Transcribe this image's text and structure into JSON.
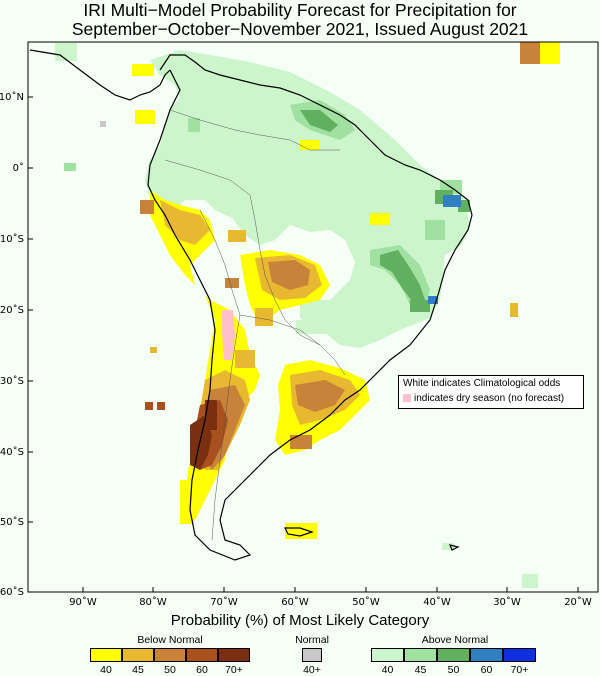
{
  "title": {
    "line1": "IRI Multi−Model Probability Forecast for Precipitation for",
    "line2": "September−October−November 2021, Issued August 2021"
  },
  "map": {
    "lat_labels": [
      "10˚N",
      "0˚",
      "10˚S",
      "20˚S",
      "30˚S",
      "40˚S",
      "50˚S",
      "60˚S"
    ],
    "lon_labels": [
      "90˚W",
      "80˚W",
      "70˚W",
      "60˚W",
      "50˚W",
      "40˚W",
      "30˚W",
      "20˚W"
    ],
    "note_line1": "White indicates Climatological odds",
    "note_line2": "indicates dry season (no forecast)"
  },
  "legend": {
    "title": "Probability (%) of Most Likely Category",
    "below_label": "Below Normal",
    "normal_label": "Normal",
    "above_label": "Above Normal",
    "below_ticks": [
      "40",
      "45",
      "50",
      "60",
      "70+"
    ],
    "normal_ticks": [
      "40+"
    ],
    "above_ticks": [
      "40",
      "45",
      "50",
      "60",
      "70+"
    ],
    "colors": {
      "below": [
        "#ffff00",
        "#e8b830",
        "#c8823a",
        "#a8501e",
        "#7a3010"
      ],
      "normal": [
        "#c8c8c8"
      ],
      "above": [
        "#ccf5cc",
        "#a0e0a0",
        "#60b060",
        "#3080c0",
        "#1030e0"
      ],
      "dry_season": "#ffc0cb"
    }
  }
}
